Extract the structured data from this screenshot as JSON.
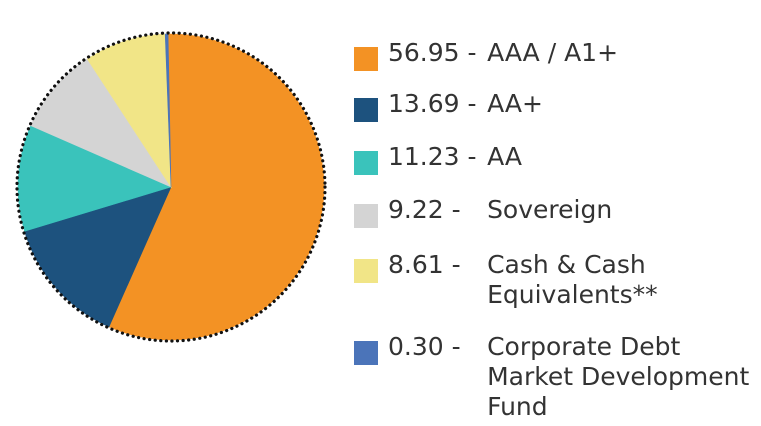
{
  "chart_data": {
    "type": "pie",
    "title": "",
    "series": [
      {
        "name": "",
        "values": [
          56.95,
          13.69,
          11.23,
          9.22,
          8.61,
          0.3
        ]
      }
    ],
    "categories": [
      "AAA / A1+",
      "AA+",
      "AA",
      "Sovereign",
      "Cash & Cash Equivalents**",
      "Corporate Debt Market Development Fund"
    ],
    "value_labels": [
      "56.95",
      "13.69",
      "11.23",
      "9.22",
      "8.61",
      "0.30"
    ],
    "colors": [
      "#f39224",
      "#1d527e",
      "#3ac3bb",
      "#d4d4d4",
      "#f1e587",
      "#4b74b9"
    ],
    "legend": {
      "placement": "right",
      "items": [
        {
          "value": "56.95",
          "separator": " - ",
          "label": "AAA / A1+",
          "color": "#f39224"
        },
        {
          "value": "13.69",
          "separator": " - ",
          "label": "AA+",
          "color": "#1d527e"
        },
        {
          "value": "11.23",
          "separator": " - ",
          "label": "AA",
          "color": "#3ac3bb"
        },
        {
          "value": "9.22",
          "separator": " - ",
          "label": "Sovereign",
          "color": "#d4d4d4"
        },
        {
          "value": "8.61",
          "separator": " - ",
          "label": "Cash & Cash Equivalents**",
          "color": "#f1e587"
        },
        {
          "value": "0.30",
          "separator": " - ",
          "label": "Corporate Debt Market Development Fund",
          "color": "#4b74b9"
        }
      ]
    },
    "border": {
      "style": "dotted",
      "color": "#111111"
    }
  }
}
